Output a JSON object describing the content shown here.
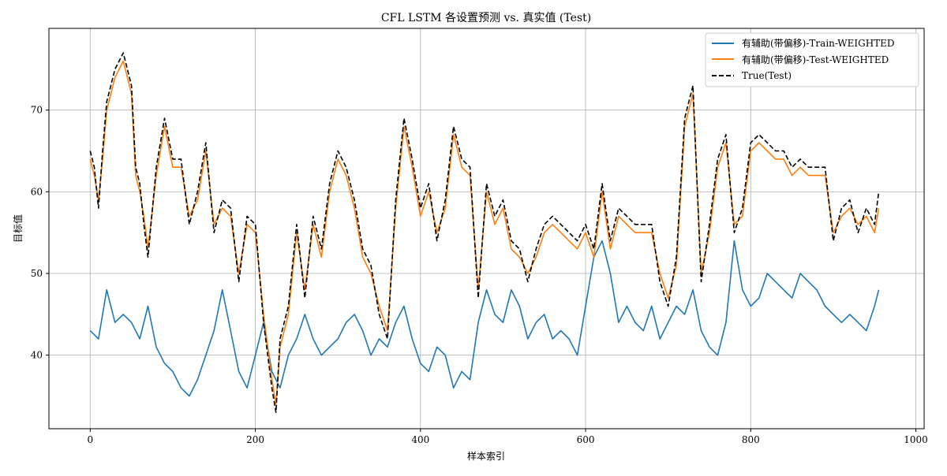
{
  "chart_data": {
    "type": "line",
    "title": "CFL LSTM 各设置预测 vs. 真实值 (Test)",
    "xlabel": "样本索引",
    "ylabel": "目标值",
    "xlim": [
      -50,
      1010
    ],
    "ylim": [
      31,
      80
    ],
    "xticks": [
      0,
      200,
      400,
      600,
      800,
      1000
    ],
    "yticks": [
      40,
      50,
      60,
      70
    ],
    "grid": true,
    "legend_position": "top-right",
    "colors": {
      "train": "#1f77b4",
      "test": "#ff7f0e",
      "true": "#000000",
      "grid": "#b0b0b0"
    },
    "series": [
      {
        "name": "有辅助(带偏移)-Train-WEIGHTED",
        "style": "solid",
        "color": "#1f77b4",
        "x": [
          0,
          10,
          20,
          30,
          40,
          50,
          60,
          70,
          80,
          90,
          100,
          110,
          120,
          130,
          140,
          150,
          160,
          170,
          180,
          190,
          200,
          210,
          220,
          230,
          240,
          250,
          260,
          270,
          280,
          290,
          300,
          310,
          320,
          330,
          340,
          350,
          360,
          370,
          380,
          390,
          400,
          410,
          420,
          430,
          440,
          450,
          460,
          470,
          480,
          490,
          500,
          510,
          520,
          530,
          540,
          550,
          560,
          570,
          580,
          590,
          600,
          610,
          620,
          630,
          640,
          650,
          660,
          670,
          680,
          690,
          700,
          710,
          720,
          730,
          740,
          750,
          760,
          770,
          780,
          790,
          800,
          810,
          820,
          830,
          840,
          850,
          860,
          870,
          880,
          890,
          900,
          910,
          920,
          930,
          940,
          950,
          955
        ],
        "y": [
          43,
          42,
          48,
          44,
          45,
          44,
          42,
          46,
          41,
          39,
          38,
          36,
          35,
          37,
          40,
          43,
          48,
          43,
          38,
          36,
          40,
          44,
          38,
          36,
          40,
          42,
          45,
          42,
          40,
          41,
          42,
          44,
          45,
          43,
          40,
          42,
          41,
          44,
          46,
          42,
          39,
          38,
          41,
          40,
          36,
          38,
          37,
          44,
          48,
          45,
          44,
          48,
          46,
          42,
          44,
          45,
          42,
          43,
          42,
          40,
          46,
          52,
          54,
          50,
          44,
          46,
          44,
          43,
          46,
          42,
          44,
          46,
          45,
          48,
          43,
          41,
          40,
          44,
          54,
          48,
          46,
          47,
          50,
          49,
          48,
          47,
          50,
          49,
          48,
          46,
          45,
          44,
          45,
          44,
          43,
          46,
          48
        ]
      },
      {
        "name": "有辅助(带偏移)-Test-WEIGHTED",
        "style": "solid",
        "color": "#ff7f0e",
        "x": [
          0,
          5,
          10,
          15,
          20,
          30,
          40,
          50,
          55,
          60,
          65,
          70,
          80,
          90,
          100,
          110,
          120,
          130,
          140,
          150,
          160,
          170,
          180,
          190,
          200,
          210,
          220,
          225,
          230,
          240,
          250,
          260,
          270,
          280,
          290,
          300,
          310,
          320,
          330,
          340,
          350,
          360,
          370,
          380,
          390,
          400,
          410,
          420,
          430,
          440,
          450,
          460,
          470,
          480,
          490,
          500,
          510,
          520,
          530,
          540,
          550,
          560,
          570,
          580,
          590,
          600,
          610,
          620,
          630,
          640,
          650,
          660,
          670,
          680,
          690,
          700,
          710,
          720,
          730,
          740,
          750,
          760,
          770,
          780,
          790,
          800,
          810,
          820,
          830,
          840,
          850,
          860,
          870,
          880,
          890,
          900,
          910,
          920,
          930,
          940,
          950,
          955
        ],
        "y": [
          64,
          62,
          59,
          64,
          70,
          74,
          76,
          72,
          62,
          60,
          57,
          53,
          62,
          68,
          63,
          63,
          57,
          59,
          65,
          56,
          58,
          57,
          50,
          56,
          55,
          45,
          37,
          34,
          41,
          45,
          55,
          48,
          56,
          52,
          60,
          64,
          62,
          58,
          52,
          50,
          46,
          43,
          58,
          68,
          63,
          57,
          60,
          55,
          58,
          67,
          63,
          62,
          48,
          60,
          56,
          58,
          53,
          52,
          50,
          52,
          55,
          56,
          55,
          54,
          53,
          55,
          52,
          60,
          53,
          57,
          56,
          55,
          55,
          55,
          50,
          47,
          51,
          68,
          72,
          50,
          55,
          63,
          66,
          56,
          57,
          65,
          66,
          65,
          64,
          64,
          62,
          63,
          62,
          62,
          62,
          55,
          57,
          58,
          56,
          57,
          55,
          58
        ]
      },
      {
        "name": "True(Test)",
        "style": "dashed",
        "color": "#000000",
        "x": [
          0,
          5,
          10,
          15,
          20,
          30,
          40,
          50,
          55,
          60,
          65,
          70,
          80,
          90,
          100,
          110,
          120,
          130,
          140,
          150,
          160,
          170,
          180,
          190,
          200,
          210,
          220,
          225,
          230,
          240,
          250,
          260,
          270,
          280,
          290,
          300,
          310,
          320,
          330,
          340,
          350,
          360,
          370,
          380,
          390,
          400,
          410,
          420,
          430,
          440,
          450,
          460,
          470,
          480,
          490,
          500,
          510,
          520,
          530,
          540,
          550,
          560,
          570,
          580,
          590,
          600,
          610,
          620,
          630,
          640,
          650,
          660,
          670,
          680,
          690,
          700,
          710,
          720,
          730,
          740,
          750,
          760,
          770,
          780,
          790,
          800,
          810,
          820,
          830,
          840,
          850,
          860,
          870,
          880,
          890,
          900,
          910,
          920,
          930,
          940,
          950,
          955
        ],
        "y": [
          65,
          63,
          58,
          65,
          71,
          75,
          77,
          73,
          63,
          61,
          56,
          52,
          63,
          69,
          64,
          64,
          56,
          60,
          66,
          55,
          59,
          58,
          49,
          57,
          56,
          44,
          36,
          33,
          42,
          46,
          56,
          47,
          57,
          53,
          61,
          65,
          63,
          59,
          53,
          51,
          45,
          42,
          59,
          69,
          64,
          58,
          61,
          54,
          59,
          68,
          64,
          63,
          47,
          61,
          57,
          59,
          54,
          53,
          49,
          53,
          56,
          57,
          56,
          55,
          54,
          56,
          53,
          61,
          54,
          58,
          57,
          56,
          56,
          56,
          49,
          46,
          52,
          69,
          73,
          49,
          56,
          64,
          67,
          55,
          58,
          66,
          67,
          66,
          65,
          65,
          63,
          64,
          63,
          63,
          63,
          54,
          58,
          59,
          55,
          58,
          56,
          60
        ]
      }
    ]
  }
}
